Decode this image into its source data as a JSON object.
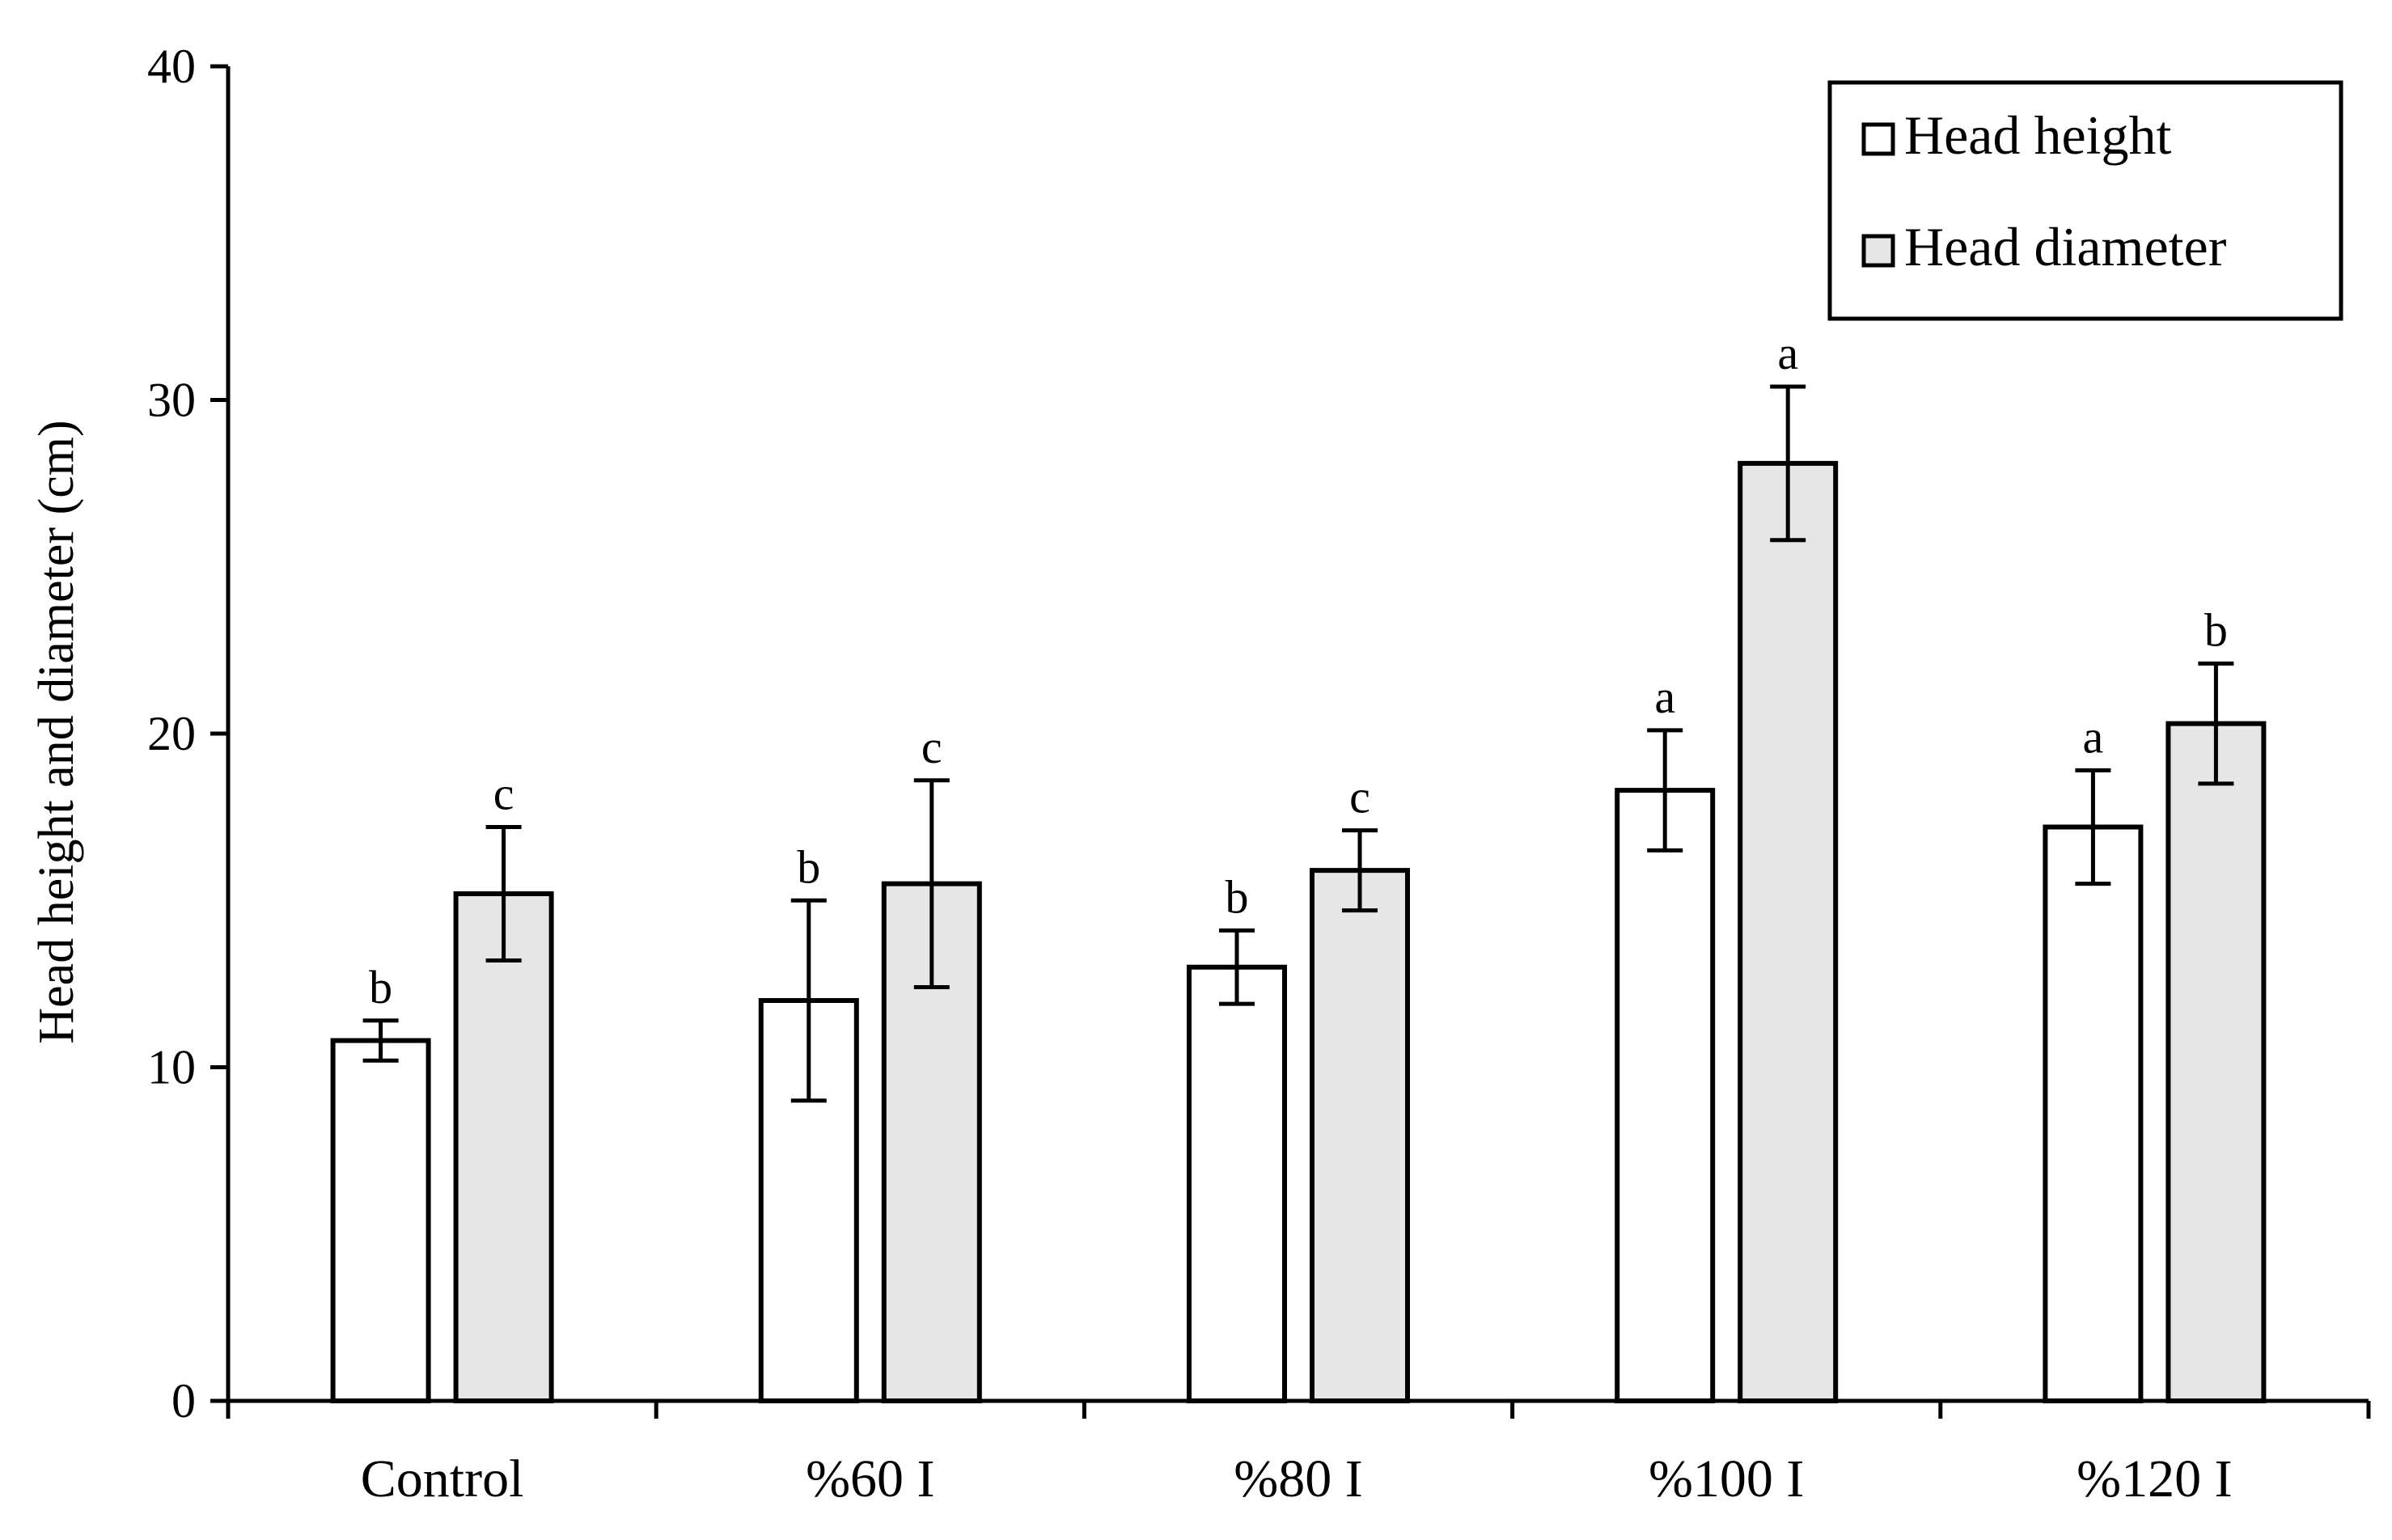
{
  "chart_data": {
    "type": "bar",
    "title": "",
    "xlabel": "",
    "ylabel": "Head height and diameter (cm)",
    "ylim": [
      0,
      40
    ],
    "yticks": [
      0,
      10,
      20,
      30,
      40
    ],
    "grid": false,
    "legend_position": "top-right",
    "categories": [
      "Control",
      "%60 I",
      "%80 I",
      "%100 I",
      "%120 I"
    ],
    "series": [
      {
        "name": "Head height",
        "color": "#ffffff",
        "values": [
          10.8,
          12.0,
          13.0,
          18.3,
          17.2
        ],
        "errors": [
          0.6,
          3.0,
          1.1,
          1.8,
          1.7
        ],
        "letters": [
          "b",
          "b",
          "b",
          "a",
          "a"
        ]
      },
      {
        "name": "Head diameter",
        "color": "#e6e6e6",
        "values": [
          15.2,
          15.5,
          15.9,
          28.1,
          20.3
        ],
        "errors": [
          2.0,
          3.1,
          1.2,
          2.3,
          1.8
        ],
        "letters": [
          "c",
          "c",
          "c",
          "a",
          "b"
        ]
      }
    ]
  }
}
